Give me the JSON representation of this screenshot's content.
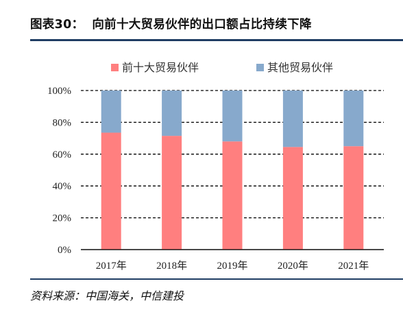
{
  "header": {
    "figure_label": "图表30：",
    "title": "向前十大贸易伙伴的出口额占比持续下降"
  },
  "source": "资料来源：中国海关，中信建投",
  "colors": {
    "top10": "#ff7f7f",
    "others": "#87a9cc",
    "rule": "#1f3d63"
  },
  "chart_data": {
    "type": "bar",
    "stacked": true,
    "categories": [
      "2017年",
      "2018年",
      "2019年",
      "2020年",
      "2021年"
    ],
    "series": [
      {
        "name": "前十大贸易伙伴",
        "values": [
          73.5,
          71.5,
          68,
          64.5,
          65
        ]
      },
      {
        "name": "其他贸易伙伴",
        "values": [
          26.5,
          28.5,
          32,
          35.5,
          35
        ]
      }
    ],
    "ylim": [
      0,
      100
    ],
    "yticks": [
      "0%",
      "20%",
      "40%",
      "60%",
      "80%",
      "100%"
    ],
    "grid": "dashed horizontal",
    "legend": "top"
  }
}
